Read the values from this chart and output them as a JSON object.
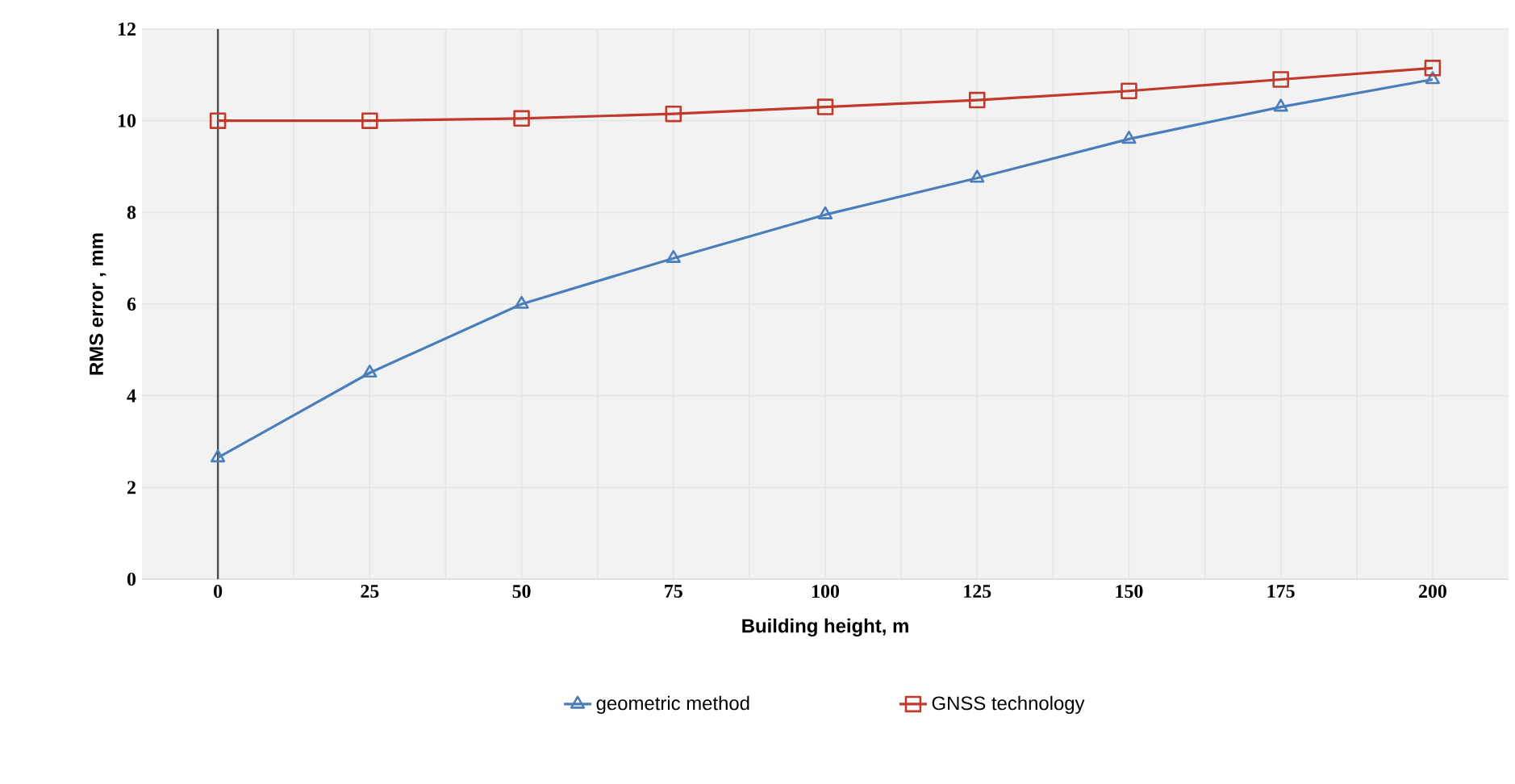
{
  "chart_data": {
    "type": "line",
    "xlabel": "Building height, m",
    "ylabel": "RMS error , mm",
    "x": [
      0,
      25,
      50,
      75,
      100,
      125,
      150,
      175,
      200
    ],
    "series": [
      {
        "name": "geometric method",
        "color": "#4a7ebb",
        "marker": "triangle",
        "values": [
          2.65,
          4.5,
          6.0,
          7.0,
          7.95,
          8.75,
          9.6,
          10.3,
          10.9
        ]
      },
      {
        "name": "GNSS technology",
        "color": "#c0392b",
        "marker": "square",
        "values": [
          10.0,
          10.0,
          10.05,
          10.15,
          10.3,
          10.45,
          10.65,
          10.9,
          11.15
        ]
      }
    ],
    "xlim": [
      -12.5,
      212.5
    ],
    "xticks": [
      0,
      25,
      50,
      75,
      100,
      125,
      150,
      175,
      200
    ],
    "ylim": [
      0,
      12
    ],
    "yticks": [
      0,
      2,
      4,
      6,
      8,
      10,
      12
    ],
    "ref_lines": [
      {
        "axis": "x",
        "value": 0,
        "color": "#4c4c4c"
      }
    ],
    "grid": true,
    "legend": "bottom",
    "line_style": "solid"
  }
}
